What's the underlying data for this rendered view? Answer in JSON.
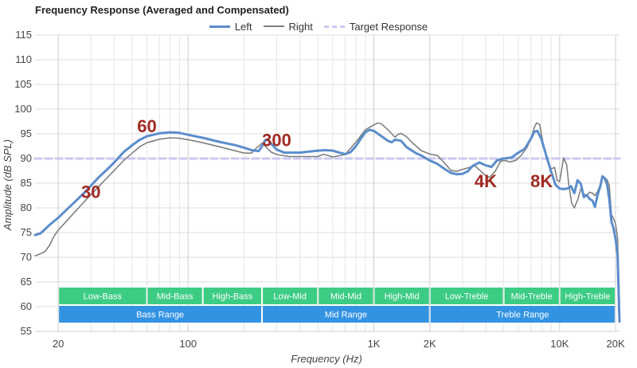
{
  "chart_data": {
    "type": "line",
    "title": "Frequency Response (Averaged and Compensated)",
    "xlabel": "Frequency (Hz)",
    "ylabel": "Amplitude (dB SPL)",
    "x_scale": "log",
    "xlim": [
      15,
      21000
    ],
    "ylim": [
      55,
      115
    ],
    "y_ticks": [
      55,
      60,
      65,
      70,
      75,
      80,
      85,
      90,
      95,
      100,
      105,
      110,
      115
    ],
    "x_ticks": [
      {
        "value": 20,
        "label": "20"
      },
      {
        "value": 100,
        "label": "100"
      },
      {
        "value": 1000,
        "label": "1K"
      },
      {
        "value": 2000,
        "label": "2K"
      },
      {
        "value": 10000,
        "label": "10K"
      },
      {
        "value": 20000,
        "label": "20K"
      }
    ],
    "x_minor_grid": [
      30,
      40,
      50,
      60,
      70,
      80,
      90,
      200,
      300,
      400,
      500,
      600,
      700,
      800,
      900,
      3000,
      4000,
      5000,
      6000,
      7000,
      8000,
      9000
    ],
    "grid": true,
    "legend_position": "top-center",
    "series": [
      {
        "name": "Left",
        "color": "#5b8dcb",
        "points": [
          [
            15,
            74.5
          ],
          [
            16,
            74.8
          ],
          [
            17,
            75.7
          ],
          [
            18,
            76.6
          ],
          [
            20,
            78.0
          ],
          [
            22,
            79.5
          ],
          [
            25,
            81.5
          ],
          [
            28,
            83.3
          ],
          [
            30,
            84.5
          ],
          [
            33,
            86.2
          ],
          [
            36,
            87.5
          ],
          [
            40,
            89.2
          ],
          [
            45,
            91.3
          ],
          [
            50,
            92.7
          ],
          [
            55,
            93.8
          ],
          [
            60,
            94.5
          ],
          [
            70,
            95.1
          ],
          [
            80,
            95.3
          ],
          [
            90,
            95.2
          ],
          [
            100,
            94.8
          ],
          [
            120,
            94.2
          ],
          [
            150,
            93.3
          ],
          [
            180,
            92.7
          ],
          [
            200,
            92.2
          ],
          [
            220,
            91.7
          ],
          [
            240,
            91.5
          ],
          [
            250,
            92.5
          ],
          [
            260,
            93.7
          ],
          [
            270,
            93.8
          ],
          [
            280,
            93.0
          ],
          [
            300,
            91.8
          ],
          [
            330,
            91.2
          ],
          [
            400,
            91.2
          ],
          [
            500,
            91.6
          ],
          [
            550,
            91.7
          ],
          [
            600,
            91.6
          ],
          [
            650,
            91.2
          ],
          [
            700,
            90.9
          ],
          [
            750,
            91.3
          ],
          [
            800,
            92.5
          ],
          [
            850,
            94.0
          ],
          [
            900,
            95.3
          ],
          [
            950,
            95.8
          ],
          [
            1000,
            95.6
          ],
          [
            1100,
            94.5
          ],
          [
            1200,
            93.5
          ],
          [
            1250,
            93.3
          ],
          [
            1300,
            93.8
          ],
          [
            1400,
            93.6
          ],
          [
            1500,
            92.3
          ],
          [
            1700,
            91.0
          ],
          [
            1800,
            90.6
          ],
          [
            2000,
            89.6
          ],
          [
            2200,
            88.9
          ],
          [
            2400,
            87.9
          ],
          [
            2600,
            87.1
          ],
          [
            2800,
            86.8
          ],
          [
            3000,
            86.9
          ],
          [
            3200,
            87.4
          ],
          [
            3400,
            88.5
          ],
          [
            3700,
            89.2
          ],
          [
            4000,
            88.6
          ],
          [
            4300,
            88.3
          ],
          [
            4600,
            89.6
          ],
          [
            5000,
            90.0
          ],
          [
            5500,
            90.2
          ],
          [
            6000,
            91.2
          ],
          [
            6500,
            92.0
          ],
          [
            7000,
            94.0
          ],
          [
            7300,
            95.4
          ],
          [
            7600,
            95.6
          ],
          [
            8000,
            93.8
          ],
          [
            8500,
            90.4
          ],
          [
            9000,
            87.3
          ],
          [
            9500,
            84.7
          ],
          [
            10000,
            83.9
          ],
          [
            10500,
            83.8
          ],
          [
            11000,
            83.9
          ],
          [
            11500,
            84.4
          ],
          [
            12000,
            83.0
          ],
          [
            12500,
            85.6
          ],
          [
            13000,
            84.9
          ],
          [
            13500,
            82.2
          ],
          [
            14000,
            82.6
          ],
          [
            14500,
            81.8
          ],
          [
            15000,
            81.5
          ],
          [
            15500,
            80.2
          ],
          [
            16000,
            82.6
          ],
          [
            16500,
            84.2
          ],
          [
            17000,
            86.4
          ],
          [
            17500,
            86.0
          ],
          [
            18000,
            84.8
          ],
          [
            18500,
            81.8
          ],
          [
            19000,
            77.2
          ],
          [
            19500,
            75.9
          ],
          [
            20000,
            73.7
          ],
          [
            20500,
            70.5
          ],
          [
            21000,
            57.0
          ]
        ]
      },
      {
        "name": "Right",
        "color": "#808080",
        "points": [
          [
            15,
            70.3
          ],
          [
            16,
            70.7
          ],
          [
            17,
            71.2
          ],
          [
            18,
            72.5
          ],
          [
            19,
            74.3
          ],
          [
            20,
            75.5
          ],
          [
            22,
            77.2
          ],
          [
            25,
            79.5
          ],
          [
            28,
            81.5
          ],
          [
            30,
            82.7
          ],
          [
            33,
            84.3
          ],
          [
            36,
            85.8
          ],
          [
            40,
            87.6
          ],
          [
            45,
            89.6
          ],
          [
            50,
            91.1
          ],
          [
            55,
            92.4
          ],
          [
            60,
            93.2
          ],
          [
            70,
            93.9
          ],
          [
            80,
            94.2
          ],
          [
            90,
            94.1
          ],
          [
            100,
            93.8
          ],
          [
            120,
            93.2
          ],
          [
            150,
            92.3
          ],
          [
            200,
            91.1
          ],
          [
            220,
            91.1
          ],
          [
            230,
            91.9
          ],
          [
            250,
            93.1
          ],
          [
            260,
            92.5
          ],
          [
            280,
            91.3
          ],
          [
            300,
            90.8
          ],
          [
            350,
            90.4
          ],
          [
            400,
            90.4
          ],
          [
            500,
            90.4
          ],
          [
            530,
            90.8
          ],
          [
            560,
            90.7
          ],
          [
            600,
            90.3
          ],
          [
            700,
            90.8
          ],
          [
            800,
            93.3
          ],
          [
            900,
            95.8
          ],
          [
            1000,
            96.8
          ],
          [
            1050,
            97.2
          ],
          [
            1100,
            97.0
          ],
          [
            1200,
            95.7
          ],
          [
            1300,
            94.3
          ],
          [
            1350,
            94.9
          ],
          [
            1400,
            95.1
          ],
          [
            1500,
            94.4
          ],
          [
            1600,
            93.3
          ],
          [
            1800,
            91.6
          ],
          [
            2000,
            90.9
          ],
          [
            2200,
            90.6
          ],
          [
            2400,
            89.1
          ],
          [
            2600,
            87.6
          ],
          [
            2800,
            87.4
          ],
          [
            3000,
            87.8
          ],
          [
            3200,
            88.1
          ],
          [
            3500,
            88.5
          ],
          [
            3700,
            87.7
          ],
          [
            4000,
            86.5
          ],
          [
            4200,
            86.2
          ],
          [
            4500,
            87.4
          ],
          [
            4800,
            89.4
          ],
          [
            5100,
            89.6
          ],
          [
            5400,
            89.3
          ],
          [
            5800,
            89.6
          ],
          [
            6200,
            90.6
          ],
          [
            6700,
            92.3
          ],
          [
            7000,
            94.1
          ],
          [
            7300,
            96.2
          ],
          [
            7500,
            97.2
          ],
          [
            7800,
            96.9
          ],
          [
            8100,
            93.6
          ],
          [
            8500,
            89.9
          ],
          [
            9000,
            87.9
          ],
          [
            9400,
            88.2
          ],
          [
            9700,
            85.6
          ],
          [
            10000,
            85.3
          ],
          [
            10500,
            90.1
          ],
          [
            10900,
            88.8
          ],
          [
            11200,
            84.8
          ],
          [
            11600,
            81.0
          ],
          [
            12000,
            80.0
          ],
          [
            12500,
            81.6
          ],
          [
            13000,
            83.8
          ],
          [
            13500,
            82.8
          ],
          [
            14000,
            82.5
          ],
          [
            14500,
            83.2
          ],
          [
            15000,
            83.0
          ],
          [
            15500,
            82.5
          ],
          [
            16000,
            83.3
          ],
          [
            16500,
            84.6
          ],
          [
            17000,
            86.3
          ],
          [
            17500,
            86.1
          ],
          [
            18000,
            85.7
          ],
          [
            18500,
            84.5
          ],
          [
            19000,
            78.7
          ],
          [
            19500,
            77.8
          ],
          [
            20000,
            76.8
          ],
          [
            20500,
            73.8
          ],
          [
            21000,
            60.5
          ]
        ]
      },
      {
        "name": "Target Response",
        "color": "#c9c9f2",
        "dashed": true,
        "points": [
          [
            15,
            90
          ],
          [
            21000,
            90
          ]
        ]
      }
    ],
    "annotations": [
      {
        "text": "30",
        "x": 30,
        "y": 82
      },
      {
        "text": "60",
        "x": 60,
        "y": 95.3
      },
      {
        "text": "300",
        "x": 300,
        "y": 92.5
      },
      {
        "text": "4K",
        "x": 4000,
        "y": 84.2
      },
      {
        "text": "8K",
        "x": 8000,
        "y": 84.2
      }
    ],
    "bands": [
      {
        "label": "Low-Bass",
        "from": 20,
        "to": 60,
        "row": 1,
        "color": "#3dcc84"
      },
      {
        "label": "Mid-Bass",
        "from": 60,
        "to": 120,
        "row": 1,
        "color": "#3dcc84"
      },
      {
        "label": "High-Bass",
        "from": 120,
        "to": 250,
        "row": 1,
        "color": "#3dcc84"
      },
      {
        "label": "Low-Mid",
        "from": 250,
        "to": 500,
        "row": 1,
        "color": "#3dcc84"
      },
      {
        "label": "Mid-Mid",
        "from": 500,
        "to": 1000,
        "row": 1,
        "color": "#3dcc84"
      },
      {
        "label": "High-Mid",
        "from": 1000,
        "to": 2000,
        "row": 1,
        "color": "#3dcc84"
      },
      {
        "label": "Low-Treble",
        "from": 2000,
        "to": 5000,
        "row": 1,
        "color": "#3dcc84"
      },
      {
        "label": "Mid-Treble",
        "from": 5000,
        "to": 10000,
        "row": 1,
        "color": "#3dcc84"
      },
      {
        "label": "High-Treble",
        "from": 10000,
        "to": 20000,
        "row": 1,
        "color": "#3dcc84"
      },
      {
        "label": "Bass Range",
        "from": 20,
        "to": 250,
        "row": 2,
        "color": "#3393e3"
      },
      {
        "label": "Mid Range",
        "from": 250,
        "to": 2000,
        "row": 2,
        "color": "#3393e3"
      },
      {
        "label": "Treble Range",
        "from": 2000,
        "to": 20000,
        "row": 2,
        "color": "#3393e3"
      }
    ]
  }
}
